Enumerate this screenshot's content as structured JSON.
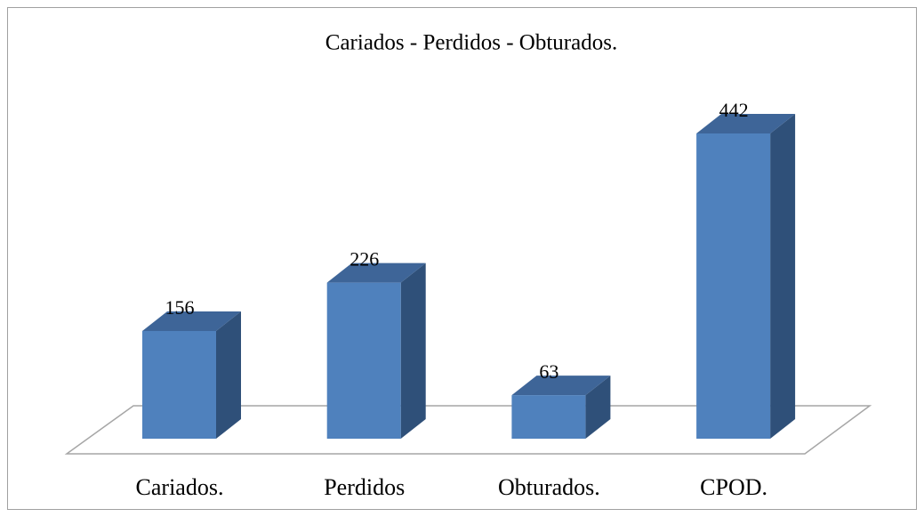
{
  "chart_data": {
    "type": "bar3d",
    "title": "Cariados - Perdidos - Obturados.",
    "categories": [
      "Cariados.",
      "Perdidos",
      "Obturados.",
      "CPOD."
    ],
    "values": [
      156,
      226,
      63,
      442
    ],
    "color": "#4f81bd"
  }
}
